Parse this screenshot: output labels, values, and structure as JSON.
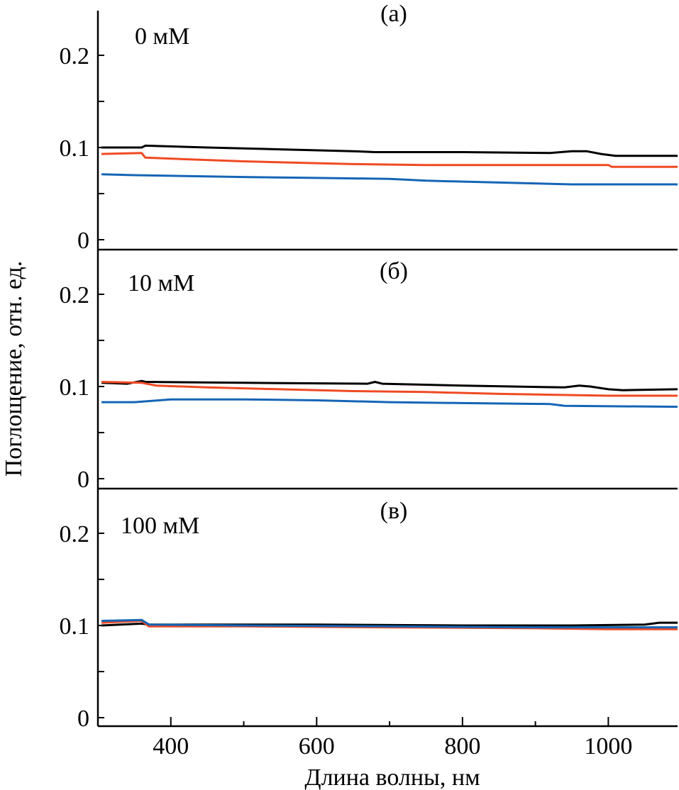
{
  "chart_data": {
    "type": "line",
    "xlabel": "Длина волны, нм",
    "ylabel": "Поглощение, отн. ед.",
    "xlim": [
      300,
      1095
    ],
    "xticks": [
      400,
      600,
      800,
      1000
    ],
    "x_tick_labels": [
      "400",
      "600",
      "800",
      "1000"
    ],
    "grid": false,
    "legend": "none",
    "colors": {
      "black": "#000000",
      "red": "#f04a23",
      "blue": "#1565b5"
    },
    "panels": [
      {
        "tag": "(а)",
        "concentration": "0 мМ",
        "ylim": [
          -0.01,
          0.25
        ],
        "yticks": [
          0,
          0.1,
          0.2
        ],
        "y_tick_labels": [
          "0",
          "0.1",
          "0.2"
        ],
        "series": [
          {
            "name": "black",
            "x": [
              305,
              360,
              365,
              450,
              550,
              650,
              680,
              800,
              920,
              950,
              970,
              990,
              1010,
              1095
            ],
            "y": [
              0.1,
              0.1,
              0.102,
              0.1,
              0.098,
              0.096,
              0.095,
              0.095,
              0.094,
              0.096,
              0.096,
              0.093,
              0.091,
              0.091
            ]
          },
          {
            "name": "red",
            "x": [
              305,
              360,
              365,
              430,
              500,
              600,
              650,
              750,
              900,
              1000,
              1005,
              1095
            ],
            "y": [
              0.093,
              0.094,
              0.089,
              0.087,
              0.085,
              0.083,
              0.082,
              0.081,
              0.081,
              0.081,
              0.079,
              0.079
            ]
          },
          {
            "name": "blue",
            "x": [
              305,
              350,
              420,
              500,
              600,
              700,
              750,
              850,
              950,
              1095
            ],
            "y": [
              0.071,
              0.07,
              0.069,
              0.068,
              0.067,
              0.066,
              0.064,
              0.062,
              0.06,
              0.06
            ]
          }
        ]
      },
      {
        "tag": "(б)",
        "concentration": "10 мМ",
        "ylim": [
          -0.01,
          0.25
        ],
        "yticks": [
          0,
          0.1,
          0.2
        ],
        "y_tick_labels": [
          "0",
          "0.1",
          "0.2"
        ],
        "series": [
          {
            "name": "black",
            "x": [
              305,
              340,
              360,
              365,
              500,
              670,
              680,
              690,
              800,
              940,
              960,
              975,
              1000,
              1020,
              1095
            ],
            "y": [
              0.104,
              0.103,
              0.106,
              0.105,
              0.104,
              0.103,
              0.105,
              0.103,
              0.101,
              0.099,
              0.101,
              0.1,
              0.097,
              0.096,
              0.097
            ]
          },
          {
            "name": "red",
            "x": [
              305,
              360,
              380,
              450,
              550,
              650,
              750,
              850,
              1000,
              1095
            ],
            "y": [
              0.105,
              0.104,
              0.101,
              0.099,
              0.097,
              0.095,
              0.094,
              0.092,
              0.09,
              0.09
            ]
          },
          {
            "name": "blue",
            "x": [
              305,
              350,
              400,
              500,
              600,
              700,
              800,
              920,
              940,
              1095
            ],
            "y": [
              0.083,
              0.083,
              0.086,
              0.086,
              0.085,
              0.083,
              0.082,
              0.081,
              0.079,
              0.078
            ]
          }
        ]
      },
      {
        "tag": "(в)",
        "concentration": "100 мМ",
        "ylim": [
          -0.01,
          0.25
        ],
        "yticks": [
          0,
          0.1,
          0.2
        ],
        "y_tick_labels": [
          "0",
          "0.1",
          "0.2"
        ],
        "series": [
          {
            "name": "black",
            "x": [
              305,
              360,
              370,
              600,
              800,
              950,
              1050,
              1070,
              1095
            ],
            "y": [
              0.1,
              0.102,
              0.101,
              0.101,
              0.1,
              0.1,
              0.101,
              0.103,
              0.103
            ]
          },
          {
            "name": "red",
            "x": [
              305,
              360,
              370,
              500,
              700,
              900,
              1000,
              1095
            ],
            "y": [
              0.103,
              0.105,
              0.099,
              0.099,
              0.098,
              0.097,
              0.096,
              0.096
            ]
          },
          {
            "name": "blue",
            "x": [
              305,
              360,
              370,
              500,
              700,
              900,
              1000,
              1095
            ],
            "y": [
              0.105,
              0.106,
              0.101,
              0.1,
              0.099,
              0.098,
              0.098,
              0.098
            ]
          }
        ]
      }
    ]
  }
}
